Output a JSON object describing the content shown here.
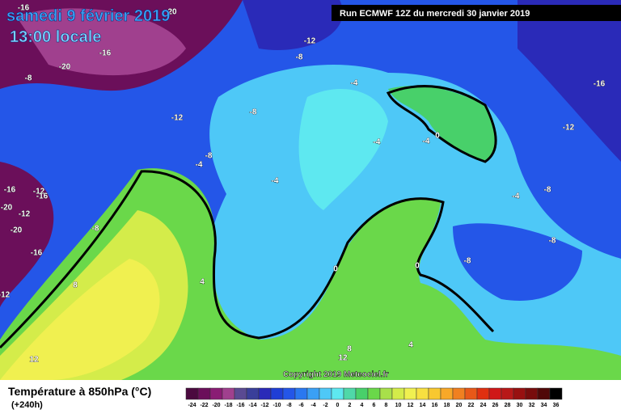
{
  "header": {
    "date": "samedi 9 février 2019",
    "time": "13:00 locale",
    "run": "Run ECMWF 12Z du mercredi 30 janvier 2019"
  },
  "copyright": "Copyright 2019 Meteociel.fr",
  "legend": {
    "title": "Température à 850hPa (°C)",
    "lead": "(+240h)",
    "scale": [
      {
        "value": -24,
        "color": "#4b0a3f"
      },
      {
        "value": -22,
        "color": "#6b0f5a"
      },
      {
        "value": -20,
        "color": "#8a1c74"
      },
      {
        "value": -18,
        "color": "#a0408e"
      },
      {
        "value": -16,
        "color": "#5a4a92"
      },
      {
        "value": -14,
        "color": "#3a3f9a"
      },
      {
        "value": -12,
        "color": "#2a2ab8"
      },
      {
        "value": -10,
        "color": "#1f3ed6"
      },
      {
        "value": -8,
        "color": "#2456e8"
      },
      {
        "value": -6,
        "color": "#2a78f0"
      },
      {
        "value": -4,
        "color": "#3aa0f5"
      },
      {
        "value": -2,
        "color": "#4ec8f7"
      },
      {
        "value": 0,
        "color": "#5ee8f0"
      },
      {
        "value": 2,
        "color": "#4fd8a8"
      },
      {
        "value": 4,
        "color": "#48d06a"
      },
      {
        "value": 6,
        "color": "#6ad84a"
      },
      {
        "value": 8,
        "color": "#a8e04a"
      },
      {
        "value": 10,
        "color": "#d4ec4a"
      },
      {
        "value": 12,
        "color": "#f0f050"
      },
      {
        "value": 14,
        "color": "#f8e040"
      },
      {
        "value": 16,
        "color": "#f8c830"
      },
      {
        "value": 18,
        "color": "#f8a828"
      },
      {
        "value": 20,
        "color": "#f08020"
      },
      {
        "value": 22,
        "color": "#e85818"
      },
      {
        "value": 24,
        "color": "#e03010"
      },
      {
        "value": 26,
        "color": "#d01818"
      },
      {
        "value": 28,
        "color": "#b81818"
      },
      {
        "value": 30,
        "color": "#981010"
      },
      {
        "value": 32,
        "color": "#780c0c"
      },
      {
        "value": 34,
        "color": "#500808"
      },
      {
        "value": 36,
        "color": "#000000"
      }
    ]
  },
  "contour_labels": [
    -16,
    -16,
    -8,
    -20,
    -12,
    -8,
    -8,
    -12,
    -4,
    -4,
    -4,
    0,
    -8,
    -4,
    -4,
    -16,
    -12,
    -16,
    -20,
    -12,
    -20,
    -8,
    -16,
    -12,
    8,
    4,
    0,
    0,
    -8,
    -8,
    -4,
    -8,
    -12,
    -16,
    12,
    8,
    12,
    4,
    20
  ]
}
